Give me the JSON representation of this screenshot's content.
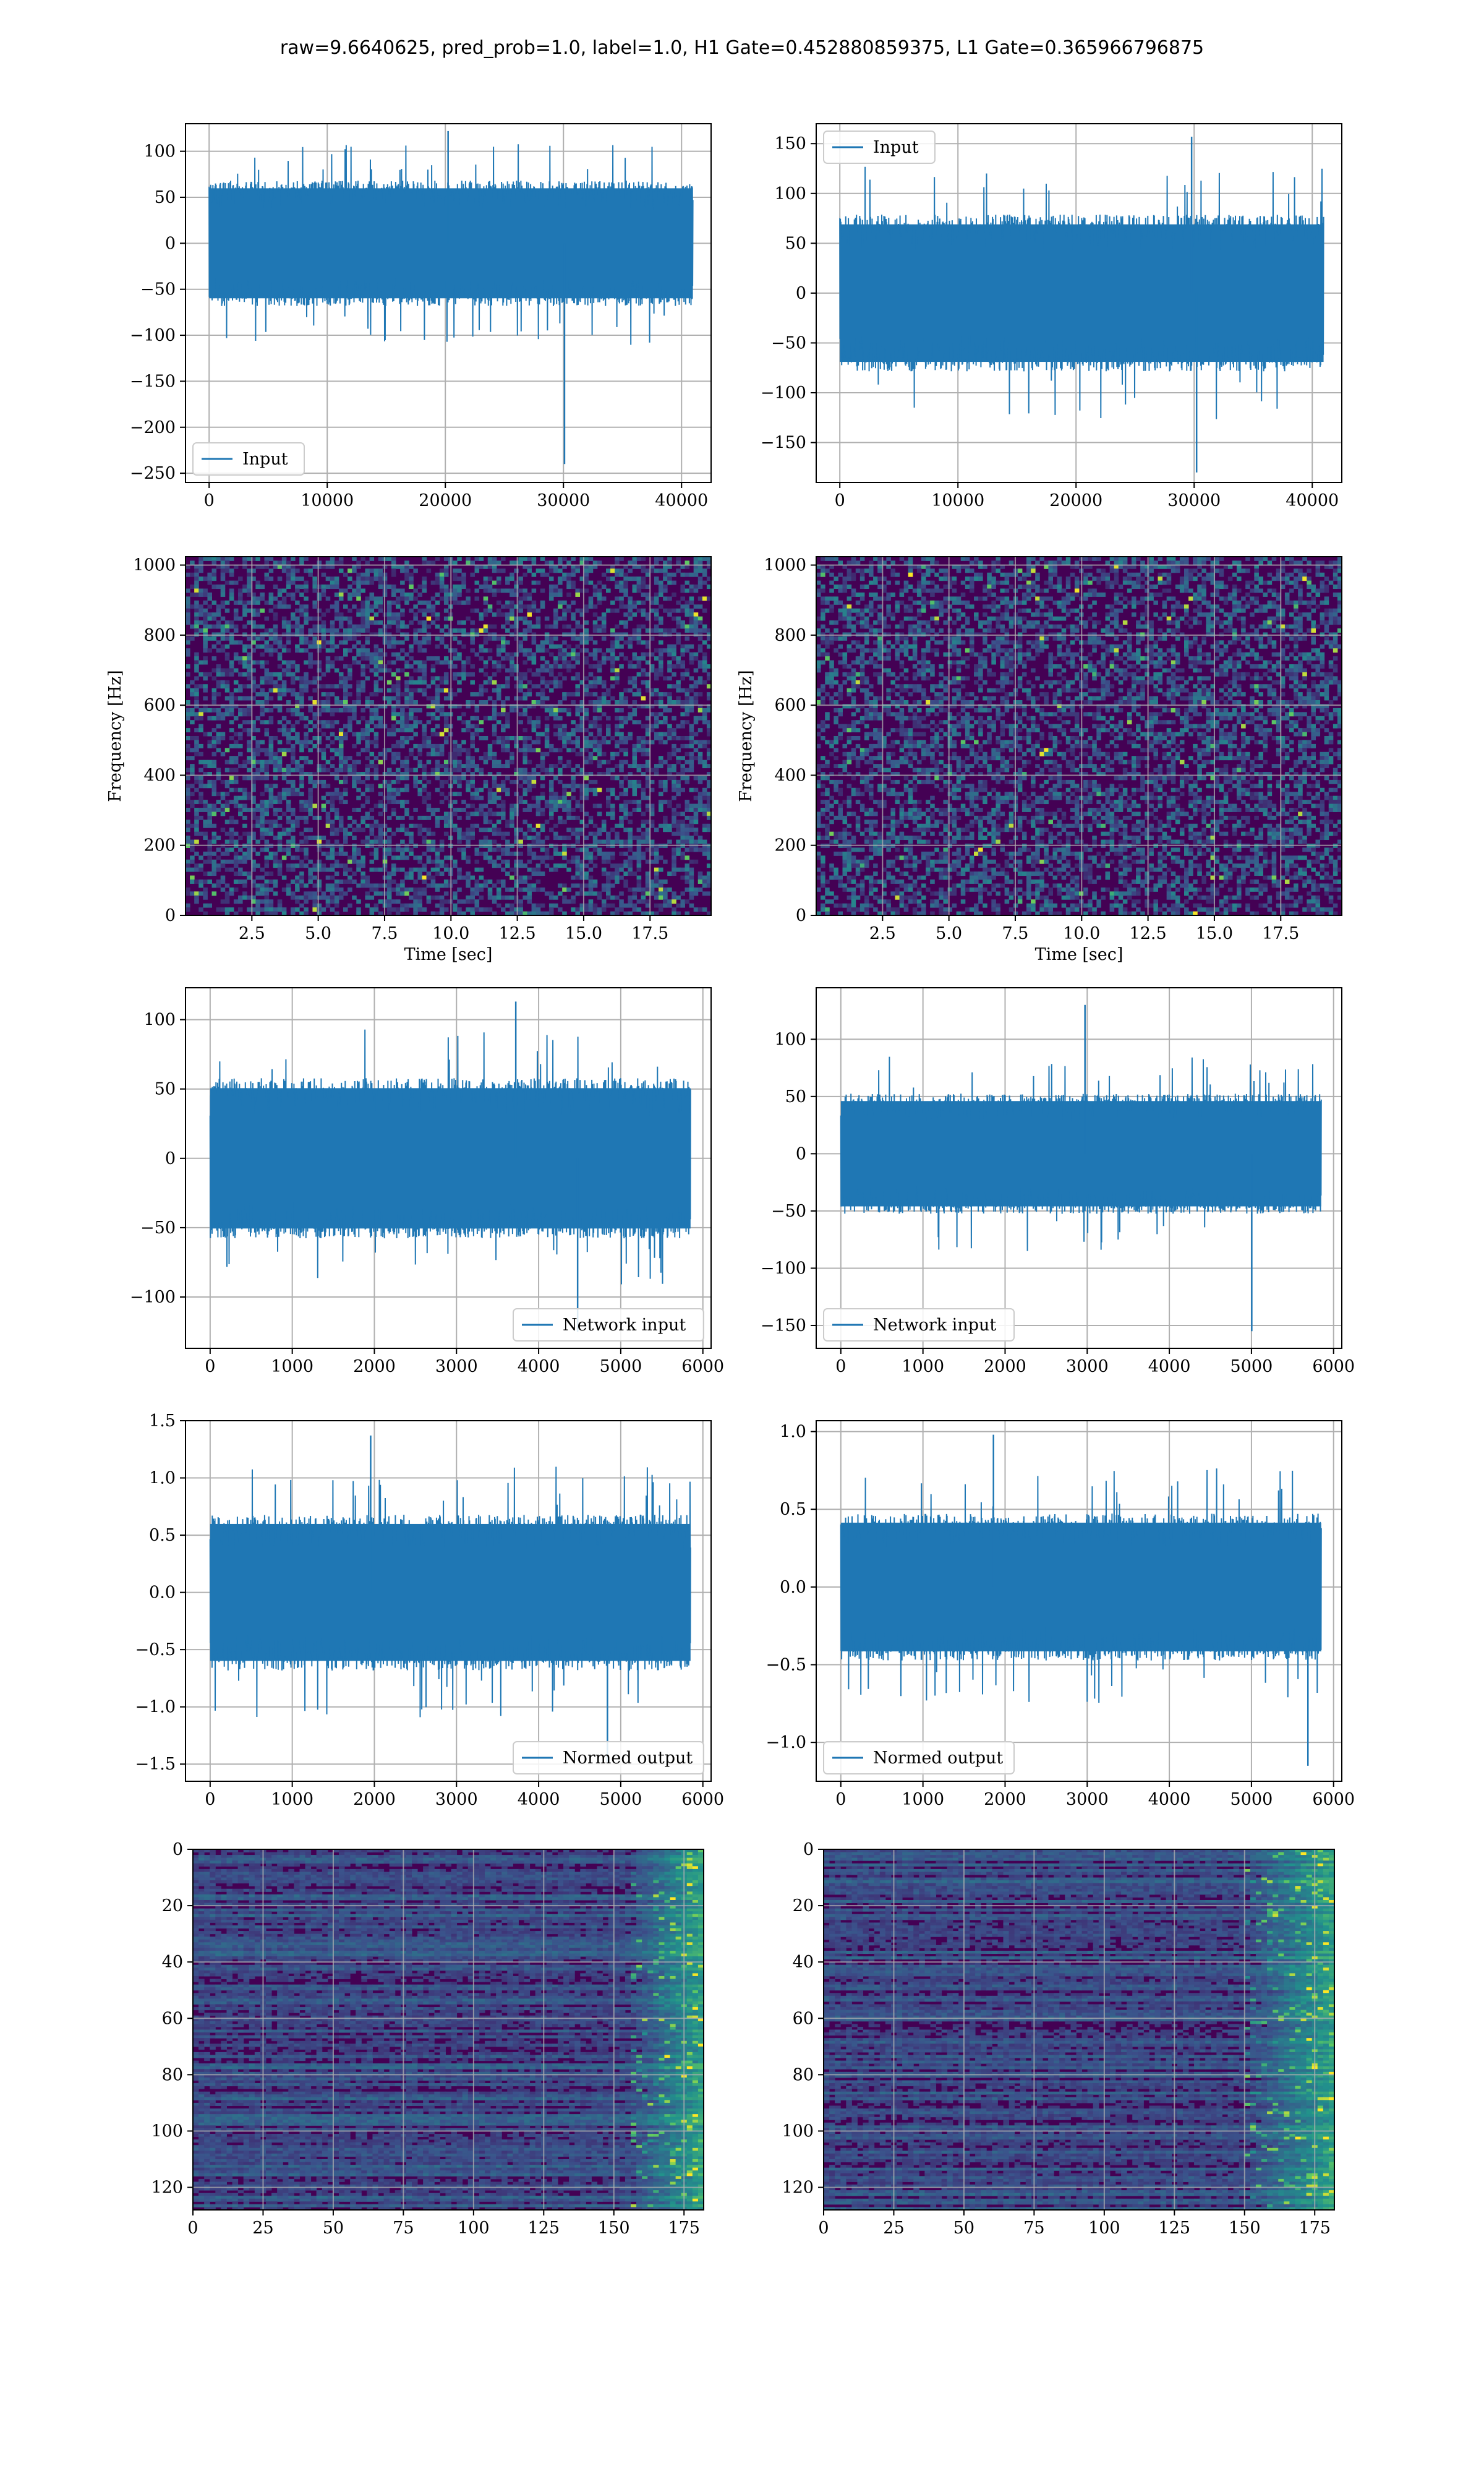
{
  "figure_title": "raw=9.6640625, pred_prob=1.0, label=1.0, H1 Gate=0.452880859375, L1 Gate=0.365966796875",
  "colors": {
    "series": "#1f77b4",
    "grid": "#b0b0b0",
    "viridis_low": "#440154",
    "viridis_mid": "#21918c",
    "viridis_high": "#fde725"
  },
  "chart_data": [
    {
      "type": "line",
      "panel": "row1-left",
      "title": "",
      "xlabel": "",
      "ylabel": "",
      "xlim": [
        -2000,
        42500
      ],
      "ylim": [
        -260,
        130
      ],
      "xticks": [
        0,
        10000,
        20000,
        30000,
        40000
      ],
      "yticks": [
        -250,
        -200,
        -150,
        -100,
        -50,
        0,
        50,
        100
      ],
      "grid": true,
      "legend_loc": "lower left",
      "series": [
        {
          "name": "Input",
          "x_range": [
            0,
            40960
          ],
          "n_points": 40960,
          "envelope": {
            "upper": 65,
            "lower": -65,
            "peaks_max": 122,
            "peaks_min": -240
          }
        }
      ]
    },
    {
      "type": "line",
      "panel": "row1-right",
      "title": "",
      "xlabel": "",
      "ylabel": "",
      "xlim": [
        -2000,
        42500
      ],
      "ylim": [
        -190,
        170
      ],
      "xticks": [
        0,
        10000,
        20000,
        30000,
        40000
      ],
      "yticks": [
        -150,
        -100,
        -50,
        0,
        50,
        100,
        150
      ],
      "grid": true,
      "legend_loc": "upper left",
      "series": [
        {
          "name": "Input",
          "x_range": [
            0,
            40960
          ],
          "n_points": 40960,
          "envelope": {
            "upper": 75,
            "lower": -75,
            "peaks_max": 157,
            "peaks_min": -180
          }
        }
      ]
    },
    {
      "type": "heatmap",
      "panel": "row2-left",
      "title": "",
      "xlabel": "Time [sec]",
      "ylabel": "Frequency [Hz]",
      "xlim": [
        0,
        19.8
      ],
      "ylim": [
        0,
        1024
      ],
      "xticks": [
        2.5,
        5.0,
        7.5,
        10.0,
        12.5,
        15.0,
        17.5
      ],
      "yticks": [
        0,
        200,
        400,
        600,
        800,
        1000
      ],
      "grid": true,
      "colormap": "viridis"
    },
    {
      "type": "heatmap",
      "panel": "row2-right",
      "title": "",
      "xlabel": "Time [sec]",
      "ylabel": "Frequency [Hz]",
      "xlim": [
        0,
        19.8
      ],
      "ylim": [
        0,
        1024
      ],
      "xticks": [
        2.5,
        5.0,
        7.5,
        10.0,
        12.5,
        15.0,
        17.5
      ],
      "yticks": [
        0,
        200,
        400,
        600,
        800,
        1000
      ],
      "grid": true,
      "colormap": "viridis"
    },
    {
      "type": "line",
      "panel": "row3-left",
      "title": "",
      "xlabel": "",
      "ylabel": "",
      "xlim": [
        -300,
        6100
      ],
      "ylim": [
        -137,
        123
      ],
      "xticks": [
        0,
        1000,
        2000,
        3000,
        4000,
        5000,
        6000
      ],
      "yticks": [
        -100,
        -50,
        0,
        50,
        100
      ],
      "grid": true,
      "legend_loc": "lower right",
      "series": [
        {
          "name": "Network input",
          "x_range": [
            0,
            5850
          ],
          "n_points": 5850,
          "envelope": {
            "upper": 55,
            "lower": -55,
            "peaks_max": 113,
            "peaks_min": -125
          }
        }
      ]
    },
    {
      "type": "line",
      "panel": "row3-right",
      "title": "",
      "xlabel": "",
      "ylabel": "",
      "xlim": [
        -300,
        6100
      ],
      "ylim": [
        -170,
        145
      ],
      "xticks": [
        0,
        1000,
        2000,
        3000,
        4000,
        5000,
        6000
      ],
      "yticks": [
        -150,
        -100,
        -50,
        0,
        50,
        100
      ],
      "grid": true,
      "legend_loc": "lower left",
      "series": [
        {
          "name": "Network input",
          "x_range": [
            0,
            5850
          ],
          "n_points": 5850,
          "envelope": {
            "upper": 50,
            "lower": -50,
            "peaks_max": 130,
            "peaks_min": -155
          }
        }
      ]
    },
    {
      "type": "line",
      "panel": "row4-left",
      "title": "",
      "xlabel": "",
      "ylabel": "",
      "xlim": [
        -300,
        6100
      ],
      "ylim": [
        -1.65,
        1.5
      ],
      "xticks": [
        0,
        1000,
        2000,
        3000,
        4000,
        5000,
        6000
      ],
      "yticks": [
        -1.5,
        -1.0,
        -0.5,
        0.0,
        0.5,
        1.0,
        1.5
      ],
      "grid": true,
      "legend_loc": "lower right",
      "series": [
        {
          "name": "Normed output",
          "x_range": [
            0,
            5850
          ],
          "n_points": 5850,
          "envelope": {
            "upper": 0.65,
            "lower": -0.65,
            "peaks_max": 1.37,
            "peaks_min": -1.48
          }
        }
      ]
    },
    {
      "type": "line",
      "panel": "row4-right",
      "title": "",
      "xlabel": "",
      "ylabel": "",
      "xlim": [
        -300,
        6100
      ],
      "ylim": [
        -1.25,
        1.07
      ],
      "xticks": [
        0,
        1000,
        2000,
        3000,
        4000,
        5000,
        6000
      ],
      "yticks": [
        -1.0,
        -0.5,
        0.0,
        0.5,
        1.0
      ],
      "grid": true,
      "legend_loc": "lower left",
      "series": [
        {
          "name": "Normed output",
          "x_range": [
            0,
            5850
          ],
          "n_points": 5850,
          "envelope": {
            "upper": 0.45,
            "lower": -0.45,
            "peaks_max": 0.98,
            "peaks_min": -1.15
          }
        }
      ]
    },
    {
      "type": "heatmap",
      "panel": "row5-left",
      "title": "",
      "xlabel": "",
      "ylabel": "",
      "xlim": [
        0,
        182
      ],
      "ylim": [
        128,
        0
      ],
      "xticks": [
        0,
        25,
        50,
        75,
        100,
        125,
        150,
        175
      ],
      "yticks": [
        0,
        20,
        40,
        60,
        80,
        100,
        120
      ],
      "grid": true,
      "colormap": "viridis",
      "rows": 128,
      "cols": 182,
      "bright_band_cols": [
        155,
        182
      ]
    },
    {
      "type": "heatmap",
      "panel": "row5-right",
      "title": "",
      "xlabel": "",
      "ylabel": "",
      "xlim": [
        0,
        182
      ],
      "ylim": [
        128,
        0
      ],
      "xticks": [
        0,
        25,
        50,
        75,
        100,
        125,
        150,
        175
      ],
      "yticks": [
        0,
        20,
        40,
        60,
        80,
        100,
        120
      ],
      "grid": true,
      "colormap": "viridis",
      "rows": 128,
      "cols": 182,
      "bright_band_cols": [
        150,
        182
      ]
    }
  ]
}
